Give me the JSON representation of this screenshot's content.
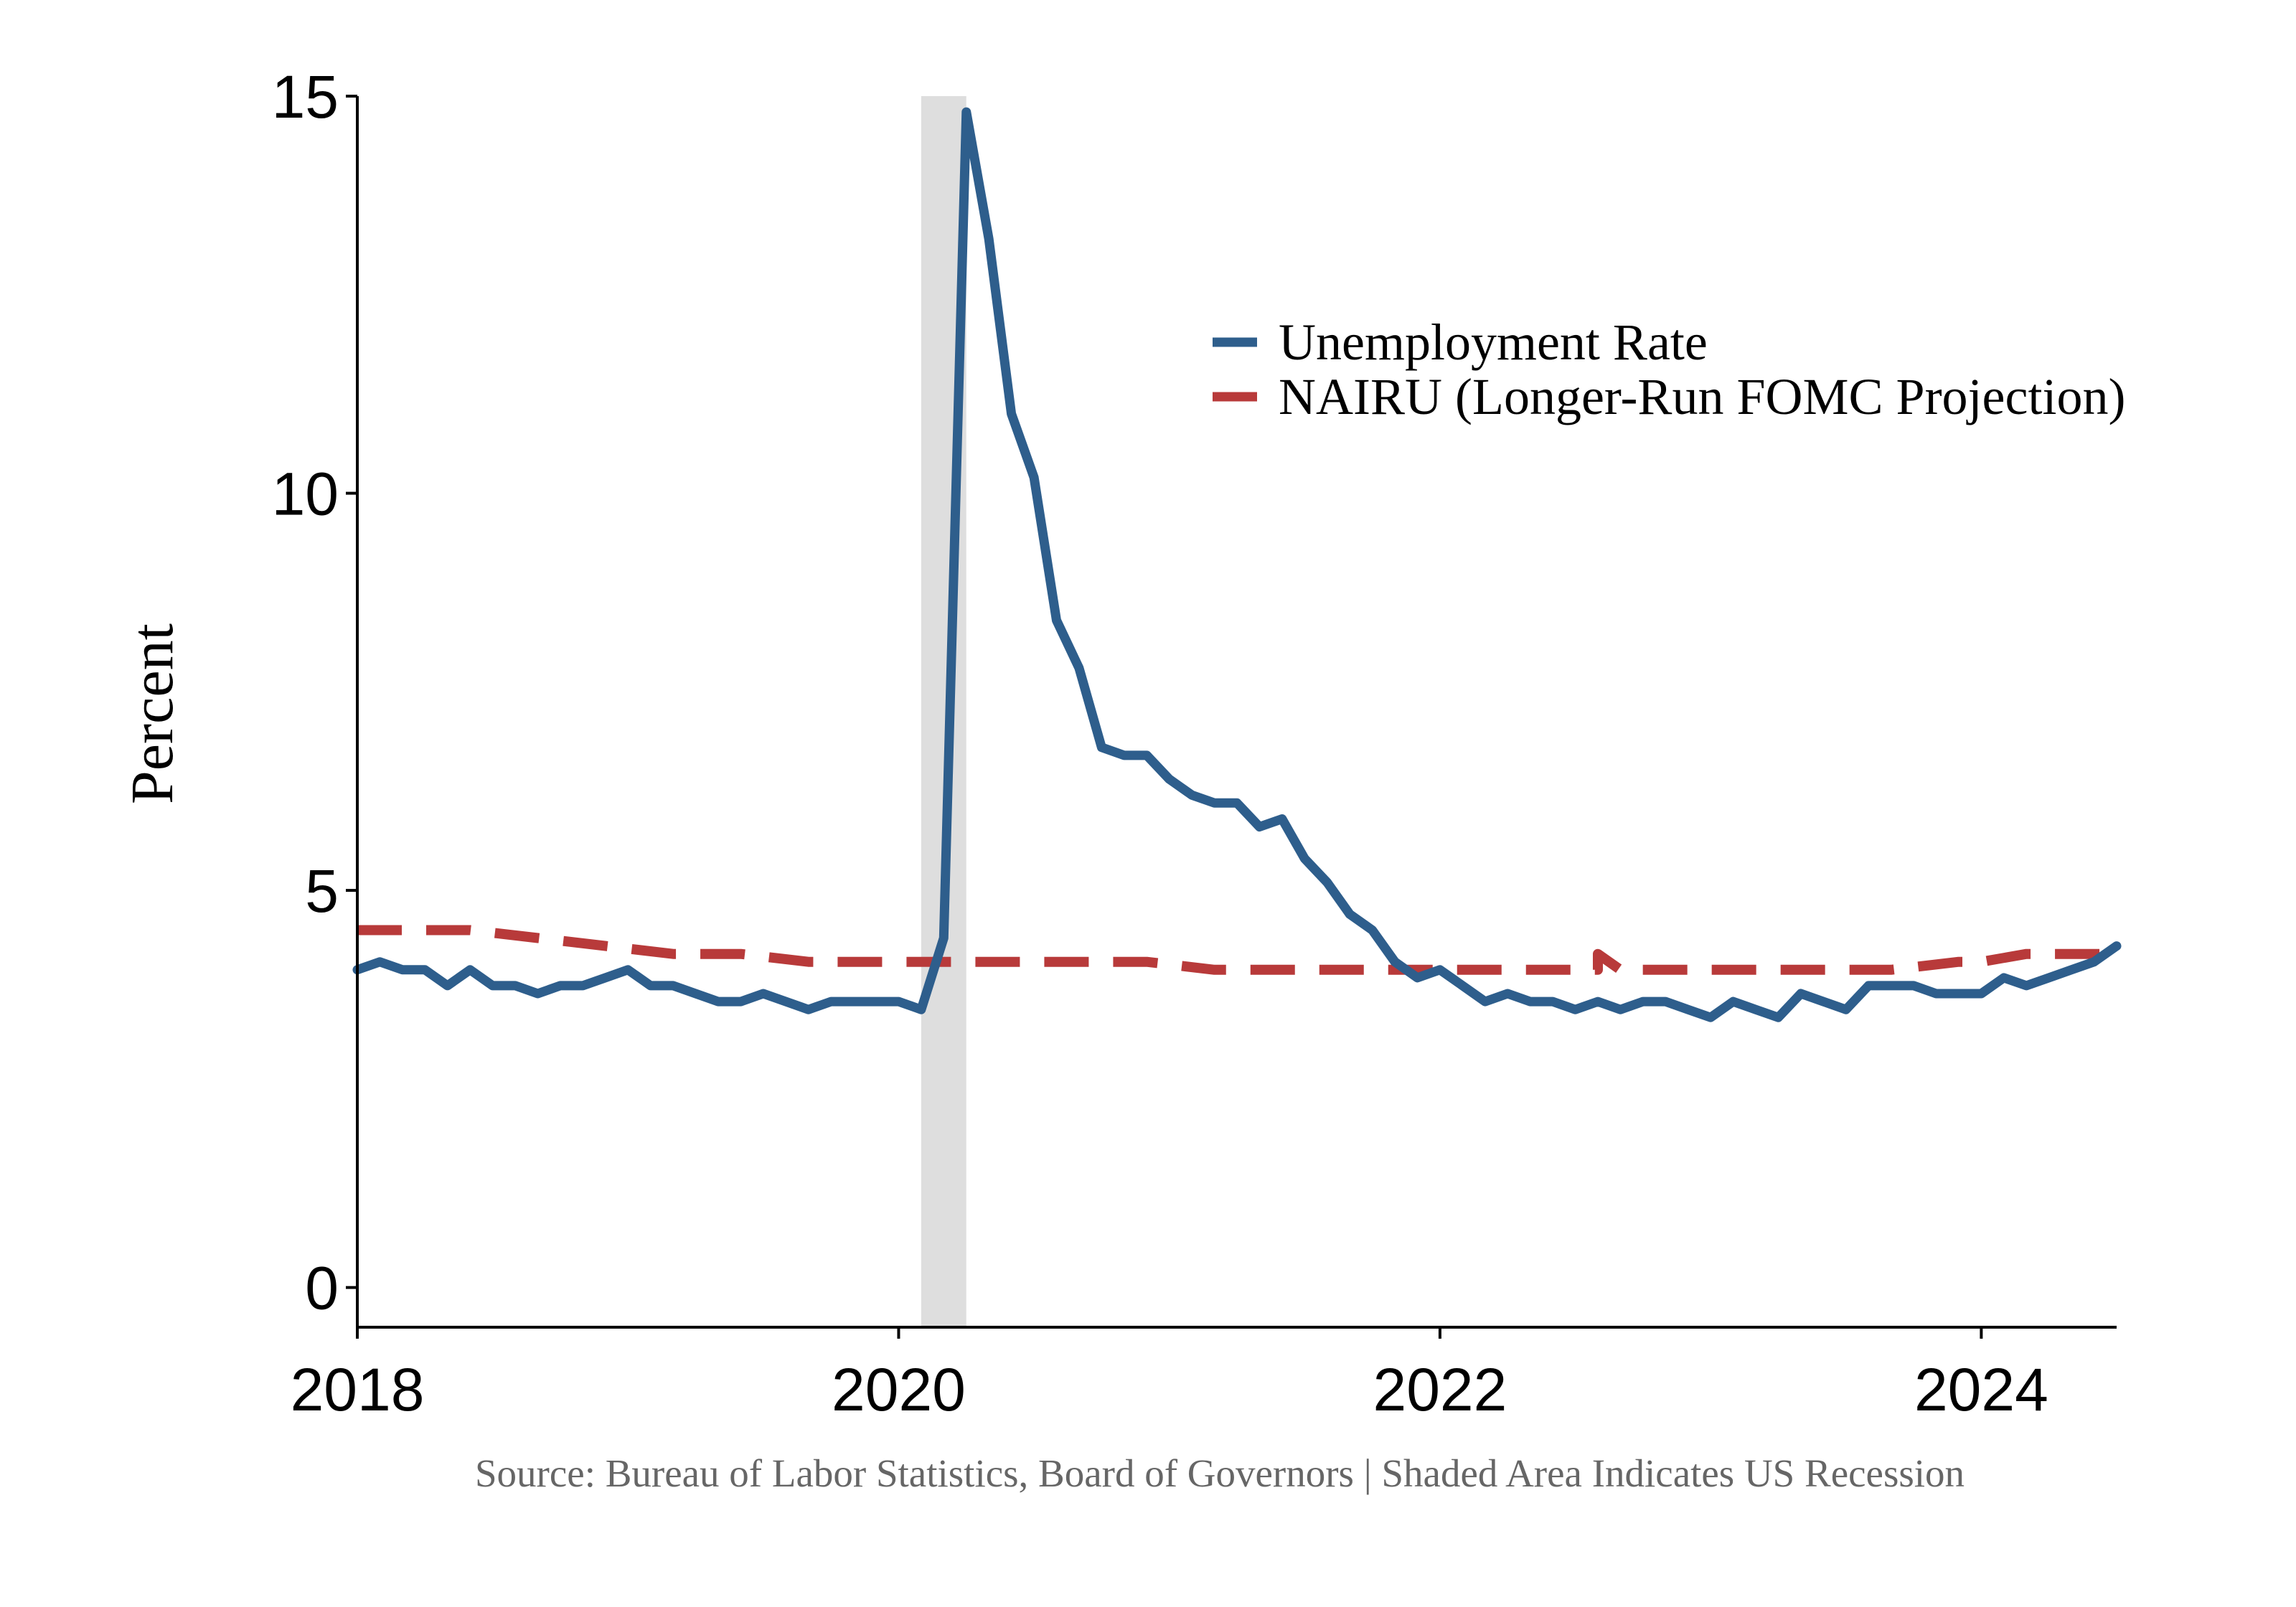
{
  "chart_data": {
    "type": "line",
    "title": "",
    "xlabel": "",
    "ylabel": "Percent",
    "caption": "Source: Bureau of Labor Statistics, Board of Governors  | Shaded Area Indicates US Recession",
    "x_ticks": [
      "2018",
      "2020",
      "2022",
      "2024"
    ],
    "y_ticks": [
      "0",
      "5",
      "10",
      "15"
    ],
    "xlim": [
      "2018-01",
      "2024-07"
    ],
    "ylim": [
      -0.5,
      15
    ],
    "grid": false,
    "legend_position": "top-right",
    "recession": {
      "start": "2020-02",
      "end": "2020-04"
    },
    "series": [
      {
        "name": "Unemployment Rate",
        "color": "#2E5E8C",
        "style": "solid",
        "x_start": "2018-01",
        "frequency": "monthly",
        "values": [
          4.0,
          4.1,
          4.0,
          4.0,
          3.8,
          4.0,
          3.8,
          3.8,
          3.7,
          3.8,
          3.8,
          3.9,
          4.0,
          3.8,
          3.8,
          3.7,
          3.6,
          3.6,
          3.7,
          3.6,
          3.5,
          3.6,
          3.6,
          3.6,
          3.6,
          3.5,
          4.4,
          14.8,
          13.2,
          11.0,
          10.2,
          8.4,
          7.8,
          6.8,
          6.7,
          6.7,
          6.4,
          6.2,
          6.1,
          6.1,
          5.8,
          5.9,
          5.4,
          5.1,
          4.7,
          4.5,
          4.1,
          3.9,
          4.0,
          3.8,
          3.6,
          3.7,
          3.6,
          3.6,
          3.5,
          3.6,
          3.5,
          3.6,
          3.6,
          3.5,
          3.4,
          3.6,
          3.5,
          3.4,
          3.7,
          3.6,
          3.5,
          3.8,
          3.8,
          3.8,
          3.7,
          3.7,
          3.7,
          3.9,
          3.8,
          3.9,
          4.0,
          4.1,
          4.3
        ]
      },
      {
        "name": "NAIRU (Longer-Run FOMC Projection)",
        "color": "#B83A3A",
        "style": "dashed",
        "points": [
          {
            "x": "2018-01",
            "y": 4.5
          },
          {
            "x": "2018-06",
            "y": 4.5
          },
          {
            "x": "2018-09",
            "y": 4.4
          },
          {
            "x": "2018-12",
            "y": 4.3
          },
          {
            "x": "2019-03",
            "y": 4.2
          },
          {
            "x": "2019-06",
            "y": 4.2
          },
          {
            "x": "2019-09",
            "y": 4.1
          },
          {
            "x": "2020-12",
            "y": 4.1
          },
          {
            "x": "2021-03",
            "y": 4.0
          },
          {
            "x": "2022-08",
            "y": 4.0
          },
          {
            "x": "2022-08",
            "y": 4.2
          },
          {
            "x": "2022-09",
            "y": 4.0
          },
          {
            "x": "2023-09",
            "y": 4.0
          },
          {
            "x": "2023-12",
            "y": 4.1
          },
          {
            "x": "2024-01",
            "y": 4.1
          },
          {
            "x": "2024-03",
            "y": 4.2
          },
          {
            "x": "2024-07",
            "y": 4.2
          }
        ]
      }
    ]
  }
}
